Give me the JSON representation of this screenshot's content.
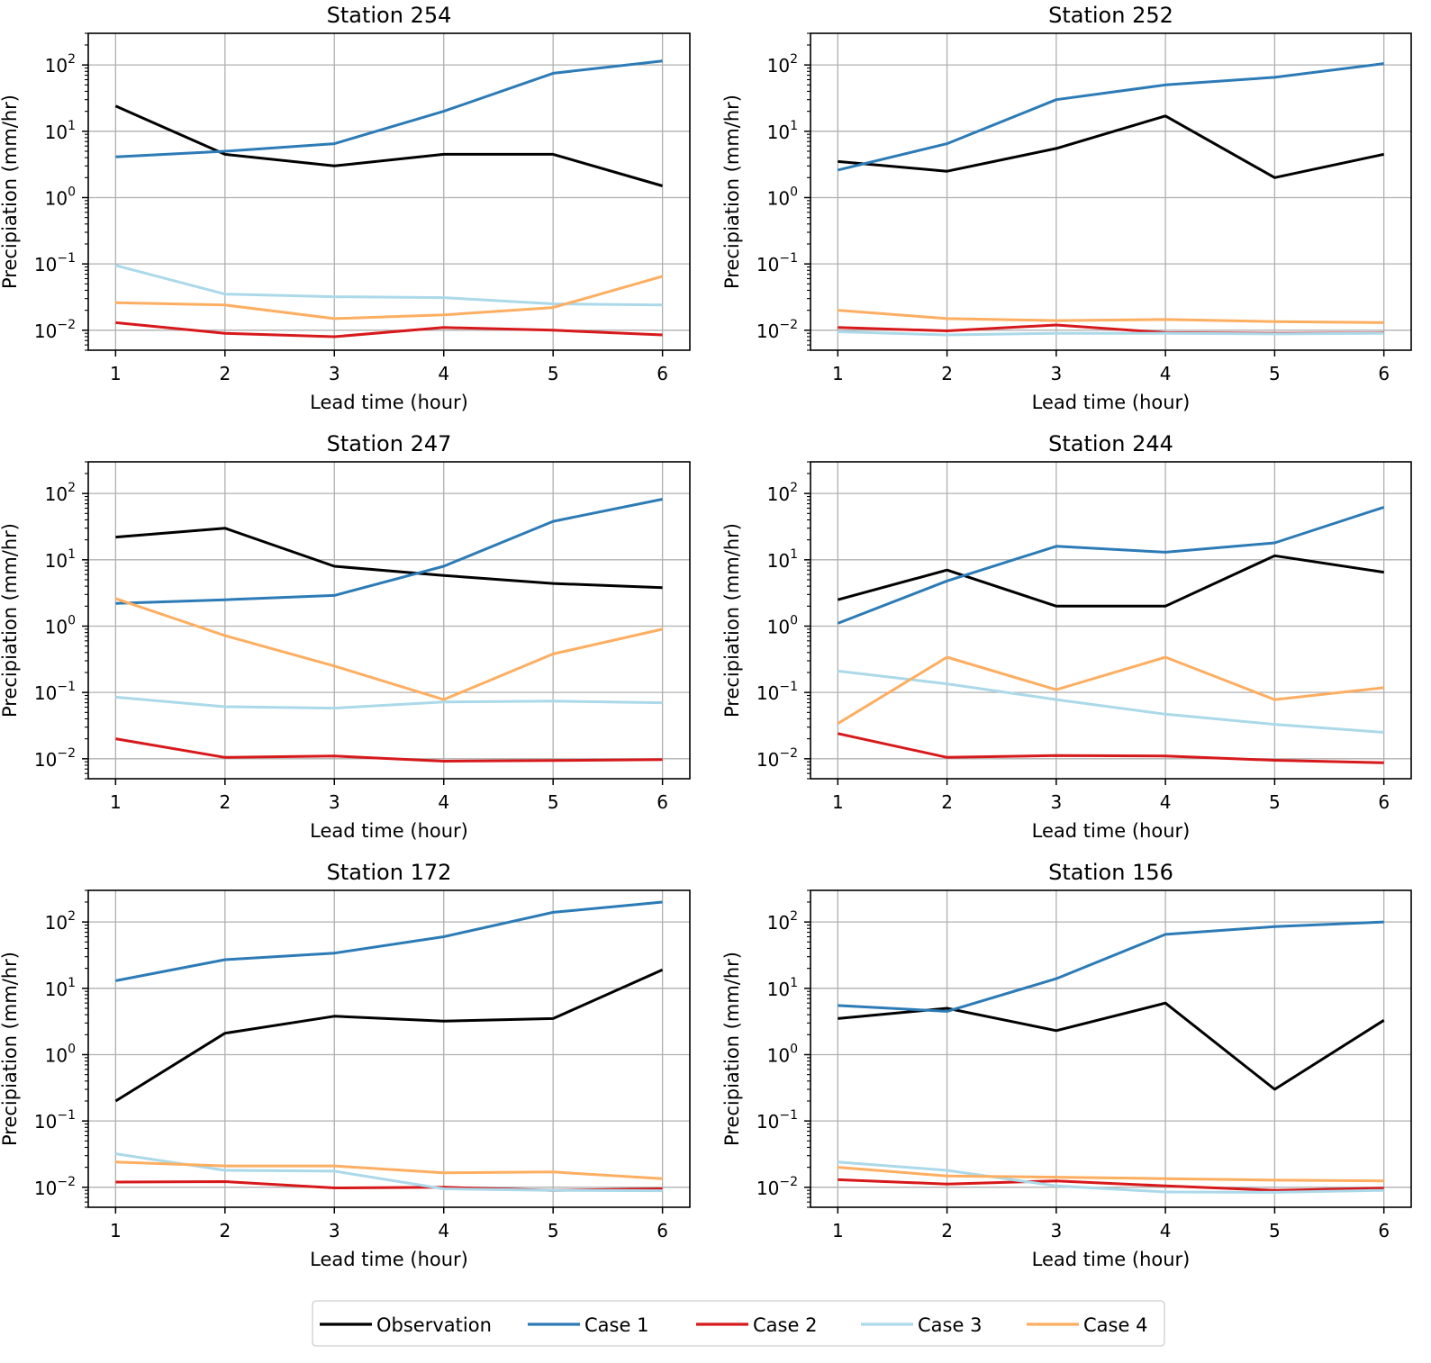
{
  "chart_data": [
    {
      "type": "line",
      "title": "Station 254",
      "xlabel": "Lead time (hour)",
      "ylabel": "Precipiation (mm/hr)",
      "yscale": "log",
      "x": [
        1,
        2,
        3,
        4,
        5,
        6
      ],
      "xticks": [
        "1",
        "2",
        "3",
        "4",
        "5",
        "6"
      ],
      "xlim": [
        0.75,
        6.25
      ],
      "ylim": [
        0.005,
        300
      ],
      "grid": true,
      "series": [
        {
          "name": "Observation",
          "values": [
            24,
            4.5,
            3.0,
            4.5,
            4.5,
            1.5
          ]
        },
        {
          "name": "Case 1",
          "values": [
            4.1,
            5.0,
            6.5,
            20,
            75,
            115
          ]
        },
        {
          "name": "Case 2",
          "values": [
            0.013,
            0.009,
            0.008,
            0.011,
            0.01,
            0.0085
          ]
        },
        {
          "name": "Case 3",
          "values": [
            0.095,
            0.035,
            0.032,
            0.031,
            0.025,
            0.024
          ]
        },
        {
          "name": "Case 4",
          "values": [
            0.026,
            0.024,
            0.015,
            0.017,
            0.022,
            0.065
          ]
        }
      ]
    },
    {
      "type": "line",
      "title": "Station 252",
      "xlabel": "Lead time (hour)",
      "ylabel": "Precipiation (mm/hr)",
      "yscale": "log",
      "x": [
        1,
        2,
        3,
        4,
        5,
        6
      ],
      "xticks": [
        "1",
        "2",
        "3",
        "4",
        "5",
        "6"
      ],
      "xlim": [
        0.75,
        6.25
      ],
      "ylim": [
        0.005,
        300
      ],
      "grid": true,
      "series": [
        {
          "name": "Observation",
          "values": [
            3.5,
            2.5,
            5.5,
            17,
            2.0,
            4.5
          ]
        },
        {
          "name": "Case 1",
          "values": [
            2.6,
            6.5,
            30,
            50,
            65,
            105
          ]
        },
        {
          "name": "Case 2",
          "values": [
            0.011,
            0.0098,
            0.012,
            0.0092,
            0.009,
            0.0091
          ]
        },
        {
          "name": "Case 3",
          "values": [
            0.0095,
            0.0085,
            0.009,
            0.009,
            0.0088,
            0.009
          ]
        },
        {
          "name": "Case 4",
          "values": [
            0.02,
            0.015,
            0.014,
            0.0145,
            0.0135,
            0.013
          ]
        }
      ]
    },
    {
      "type": "line",
      "title": "Station 247",
      "xlabel": "Lead time (hour)",
      "ylabel": "Precipiation (mm/hr)",
      "yscale": "log",
      "x": [
        1,
        2,
        3,
        4,
        5,
        6
      ],
      "xticks": [
        "1",
        "2",
        "3",
        "4",
        "5",
        "6"
      ],
      "xlim": [
        0.75,
        6.25
      ],
      "ylim": [
        0.005,
        300
      ],
      "grid": true,
      "series": [
        {
          "name": "Observation",
          "values": [
            22,
            30,
            8,
            5.8,
            4.4,
            3.8
          ]
        },
        {
          "name": "Case 1",
          "values": [
            2.2,
            2.5,
            2.9,
            8,
            38,
            82
          ]
        },
        {
          "name": "Case 2",
          "values": [
            0.02,
            0.0105,
            0.011,
            0.0092,
            0.0094,
            0.0097
          ]
        },
        {
          "name": "Case 3",
          "values": [
            0.085,
            0.061,
            0.058,
            0.072,
            0.074,
            0.07
          ]
        },
        {
          "name": "Case 4",
          "values": [
            2.6,
            0.72,
            0.25,
            0.078,
            0.38,
            0.9
          ]
        }
      ]
    },
    {
      "type": "line",
      "title": "Station 244",
      "xlabel": "Lead time (hour)",
      "ylabel": "Precipiation (mm/hr)",
      "yscale": "log",
      "x": [
        1,
        2,
        3,
        4,
        5,
        6
      ],
      "xticks": [
        "1",
        "2",
        "3",
        "4",
        "5",
        "6"
      ],
      "xlim": [
        0.75,
        6.25
      ],
      "ylim": [
        0.005,
        300
      ],
      "grid": true,
      "series": [
        {
          "name": "Observation",
          "values": [
            2.5,
            7,
            2.0,
            2.0,
            11.5,
            6.5
          ]
        },
        {
          "name": "Case 1",
          "values": [
            1.1,
            4.8,
            16,
            13,
            18,
            62
          ]
        },
        {
          "name": "Case 2",
          "values": [
            0.024,
            0.0105,
            0.0112,
            0.011,
            0.0095,
            0.0087
          ]
        },
        {
          "name": "Case 3",
          "values": [
            0.21,
            0.135,
            0.078,
            0.047,
            0.033,
            0.025
          ]
        },
        {
          "name": "Case 4",
          "values": [
            0.034,
            0.34,
            0.11,
            0.34,
            0.078,
            0.118
          ]
        }
      ]
    },
    {
      "type": "line",
      "title": "Station 172",
      "xlabel": "Lead time (hour)",
      "ylabel": "Precipiation (mm/hr)",
      "yscale": "log",
      "x": [
        1,
        2,
        3,
        4,
        5,
        6
      ],
      "xticks": [
        "1",
        "2",
        "3",
        "4",
        "5",
        "6"
      ],
      "xlim": [
        0.75,
        6.25
      ],
      "ylim": [
        0.005,
        300
      ],
      "grid": true,
      "series": [
        {
          "name": "Observation",
          "values": [
            0.2,
            2.1,
            3.8,
            3.2,
            3.5,
            19
          ]
        },
        {
          "name": "Case 1",
          "values": [
            13,
            27,
            34,
            60,
            140,
            200
          ]
        },
        {
          "name": "Case 2",
          "values": [
            0.012,
            0.0122,
            0.0098,
            0.01,
            0.009,
            0.0095
          ]
        },
        {
          "name": "Case 3",
          "values": [
            0.032,
            0.018,
            0.0175,
            0.0095,
            0.009,
            0.0089
          ]
        },
        {
          "name": "Case 4",
          "values": [
            0.024,
            0.021,
            0.021,
            0.0165,
            0.017,
            0.0135
          ]
        }
      ]
    },
    {
      "type": "line",
      "title": "Station 156",
      "xlabel": "Lead time (hour)",
      "ylabel": "Precipiation (mm/hr)",
      "yscale": "log",
      "x": [
        1,
        2,
        3,
        4,
        5,
        6
      ],
      "xticks": [
        "1",
        "2",
        "3",
        "4",
        "5",
        "6"
      ],
      "xlim": [
        0.75,
        6.25
      ],
      "ylim": [
        0.005,
        300
      ],
      "grid": true,
      "series": [
        {
          "name": "Observation",
          "values": [
            3.5,
            5.0,
            2.3,
            6.0,
            0.3,
            3.3
          ]
        },
        {
          "name": "Case 1",
          "values": [
            5.5,
            4.5,
            14,
            65,
            85,
            100
          ]
        },
        {
          "name": "Case 2",
          "values": [
            0.013,
            0.0112,
            0.0125,
            0.0105,
            0.009,
            0.0097
          ]
        },
        {
          "name": "Case 3",
          "values": [
            0.024,
            0.018,
            0.0105,
            0.0085,
            0.0084,
            0.009
          ]
        },
        {
          "name": "Case 4",
          "values": [
            0.02,
            0.0148,
            0.0142,
            0.0135,
            0.0128,
            0.0125
          ]
        }
      ]
    }
  ],
  "ytick_labels": [
    {
      "base": "10",
      "exp": "2",
      "value": 100
    },
    {
      "base": "10",
      "exp": "1",
      "value": 10
    },
    {
      "base": "10",
      "exp": "0",
      "value": 1
    },
    {
      "base": "10",
      "exp": "−1",
      "value": 0.1
    },
    {
      "base": "10",
      "exp": "−2",
      "value": 0.01
    }
  ],
  "legend": {
    "position": "bottom-center",
    "entries": [
      {
        "name": "Observation",
        "color": "#000000"
      },
      {
        "name": "Case 1",
        "color": "#2c7bb6"
      },
      {
        "name": "Case 2",
        "color": "#d7191c"
      },
      {
        "name": "Case 3",
        "color": "#abd9e9"
      },
      {
        "name": "Case 4",
        "color": "#fdae61"
      }
    ]
  }
}
